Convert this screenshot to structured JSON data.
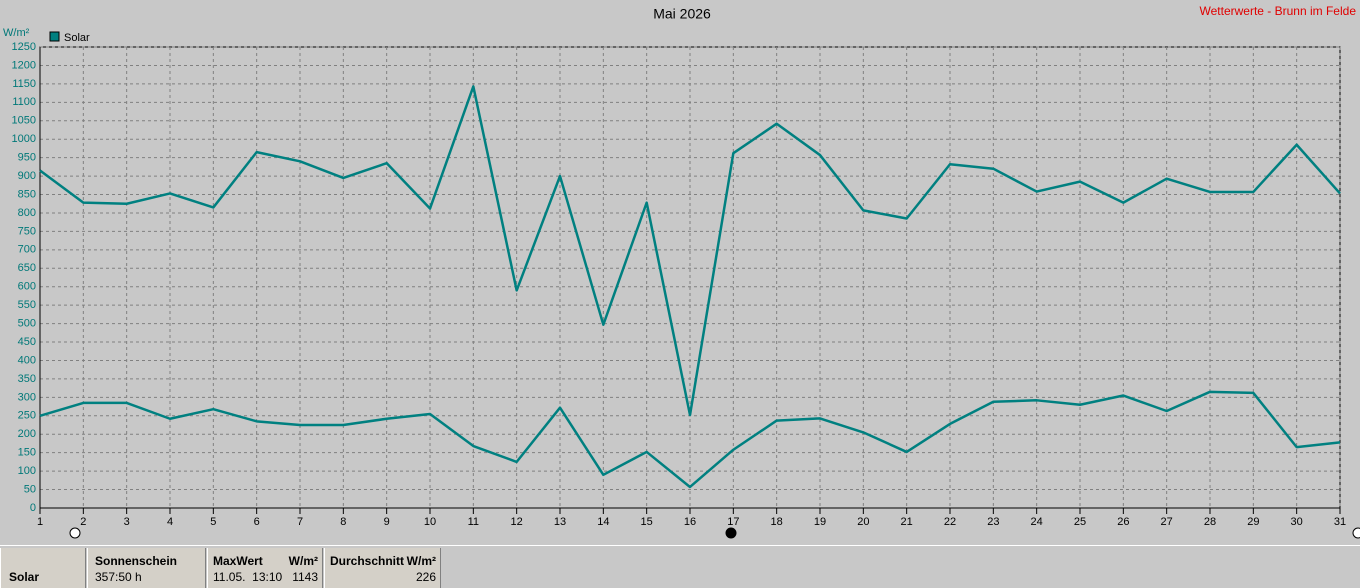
{
  "chart_data": {
    "type": "line",
    "title": "Mai 2026",
    "source": "Wetterwerte - Brunn im Felde",
    "y_label": "W/m²",
    "x": [
      1,
      2,
      3,
      4,
      5,
      6,
      7,
      8,
      9,
      10,
      11,
      12,
      13,
      14,
      15,
      16,
      17,
      18,
      19,
      20,
      21,
      22,
      23,
      24,
      25,
      26,
      27,
      28,
      29,
      30,
      31
    ],
    "xlim": [
      1,
      31
    ],
    "xticks": [
      1,
      2,
      3,
      4,
      5,
      6,
      7,
      8,
      9,
      10,
      11,
      12,
      13,
      14,
      15,
      16,
      17,
      18,
      19,
      20,
      21,
      22,
      23,
      24,
      25,
      26,
      27,
      28,
      29,
      30,
      31
    ],
    "ylim": [
      0,
      1250
    ],
    "yticks": [
      0,
      50,
      100,
      150,
      200,
      250,
      300,
      350,
      400,
      450,
      500,
      550,
      600,
      650,
      700,
      750,
      800,
      850,
      900,
      950,
      1000,
      1050,
      1100,
      1150,
      1200,
      1250
    ],
    "grid": true,
    "series": [
      {
        "name": "Solar",
        "color": "#008080",
        "values": [
          915,
          828,
          825,
          853,
          815,
          965,
          940,
          895,
          935,
          812,
          1143,
          590,
          900,
          497,
          828,
          252,
          962,
          1042,
          957,
          807,
          785,
          932,
          920,
          858,
          885,
          828,
          893,
          857,
          857,
          985,
          853
        ]
      },
      {
        "color": "#008080",
        "values": [
          250,
          285,
          285,
          242,
          268,
          235,
          225,
          225,
          242,
          255,
          168,
          125,
          272,
          90,
          152,
          57,
          158,
          237,
          243,
          205,
          152,
          228,
          288,
          292,
          280,
          305,
          263,
          315,
          312,
          165,
          178
        ]
      }
    ]
  },
  "stats": {
    "row_label": "Solar",
    "sunshine": {
      "label": "Sonnenschein",
      "value": "357:50 h"
    },
    "max": {
      "label": "MaxWert",
      "unit": "W/m²",
      "date": "11.05.  13:10",
      "value": 1143
    },
    "average": {
      "label": "Durchschnitt",
      "unit": "W/m²",
      "value": 226
    }
  }
}
